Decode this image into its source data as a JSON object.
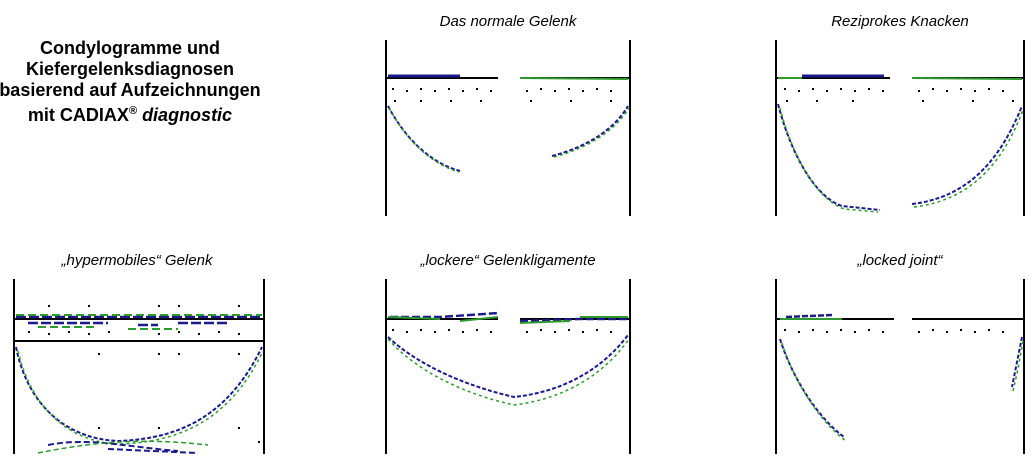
{
  "heading": {
    "line1": "Condylogramme und",
    "line2": "Kiefergelenksdiagnosen",
    "line3": "basierend auf Aufzeichnungen",
    "line4_prefix": "mit CADIAX",
    "line4_sup": "®",
    "line4_italic": "diagnostic"
  },
  "panels": [
    {
      "id": "normal",
      "title": "Das normale Gelenk"
    },
    {
      "id": "reciprocal",
      "title": "Reziprokes Knacken"
    },
    {
      "id": "hyper",
      "title": "„hypermobiles“ Gelenk"
    },
    {
      "id": "loose",
      "title": "„lockere“ Gelenkligamente"
    },
    {
      "id": "locked",
      "title": "„locked joint“"
    }
  ],
  "colors": {
    "axis": "#000000",
    "trace_blue": "#1a1a8c",
    "trace_green": "#2e9a2e"
  }
}
